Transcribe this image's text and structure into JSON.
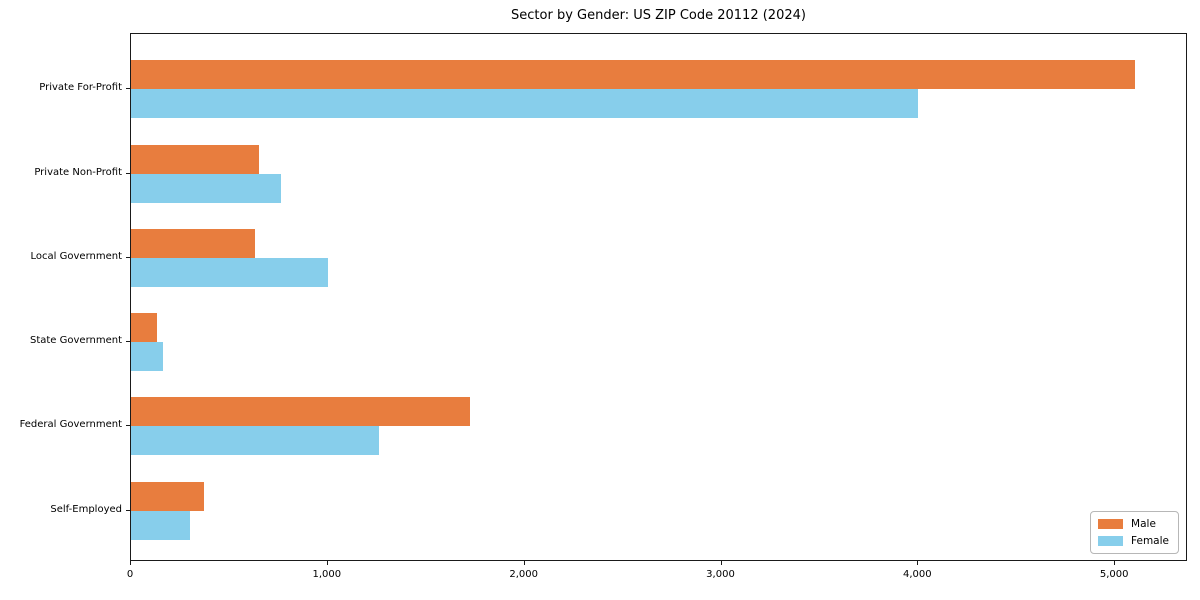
{
  "chart_data": {
    "type": "bar",
    "orientation": "horizontal",
    "title": "Sector by Gender: US ZIP Code 20112 (2024)",
    "categories": [
      "Private For-Profit",
      "Private Non-Profit",
      "Local Government",
      "State Government",
      "Federal Government",
      "Self-Employed"
    ],
    "series": [
      {
        "name": "Male",
        "color": "#e87d3e",
        "values": [
          5100,
          650,
          630,
          130,
          1720,
          370
        ]
      },
      {
        "name": "Female",
        "color": "#87ceeb",
        "values": [
          4000,
          760,
          1000,
          160,
          1260,
          300
        ]
      }
    ],
    "xlabel": "",
    "ylabel": "",
    "xlim": [
      0,
      5370
    ],
    "xticks": {
      "values": [
        0,
        1000,
        2000,
        3000,
        4000,
        5000
      ],
      "labels": [
        "0",
        "1,000",
        "2,000",
        "3,000",
        "4,000",
        "5,000"
      ]
    },
    "legend": {
      "position": "lower right",
      "entries": [
        "Male",
        "Female"
      ]
    },
    "grid": false
  },
  "style": {
    "axis_color": "#1a1a1a",
    "text_color": "#000000",
    "background": "#ffffff",
    "legend_border": "#b7b7b7"
  }
}
